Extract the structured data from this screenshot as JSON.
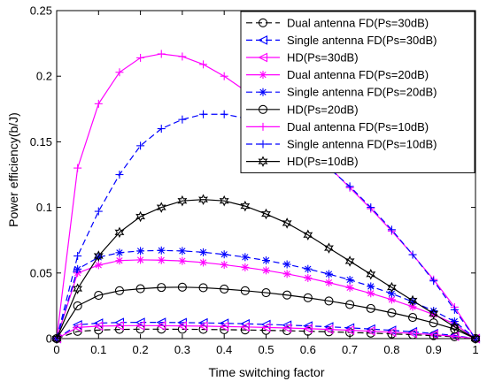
{
  "chart_data": {
    "type": "line",
    "title": "",
    "xlabel": "Time switching factor",
    "ylabel": "Power efficiency(b/J)",
    "xlim": [
      0,
      1
    ],
    "ylim": [
      0,
      0.25
    ],
    "x_ticks": [
      0,
      0.1,
      0.2,
      0.3,
      0.4,
      0.5,
      0.6,
      0.7,
      0.8,
      0.9,
      1
    ],
    "x_tick_labels": [
      "0",
      "0.1",
      "0.2",
      "0.3",
      "0.4",
      "0.5",
      "0.6",
      "0.7",
      "0.8",
      "0.9",
      "1"
    ],
    "y_ticks": [
      0,
      0.05,
      0.1,
      0.15,
      0.2,
      0.25
    ],
    "y_tick_labels": [
      "0",
      "0.05",
      "0.1",
      "0.15",
      "0.2",
      "0.25"
    ],
    "grid": false,
    "legend_position": "top-right",
    "x": [
      0,
      0.05,
      0.1,
      0.15,
      0.2,
      0.25,
      0.3,
      0.35,
      0.4,
      0.45,
      0.5,
      0.55,
      0.6,
      0.65,
      0.7,
      0.75,
      0.8,
      0.85,
      0.9,
      0.95,
      1
    ],
    "series": [
      {
        "name": "Dual antenna FD(Ps=30dB)",
        "color": "#000000",
        "dash": "dashed",
        "marker": "circle",
        "values": [
          0,
          0.0055,
          0.0065,
          0.007,
          0.0072,
          0.0072,
          0.0071,
          0.007,
          0.0068,
          0.0066,
          0.0063,
          0.006,
          0.0056,
          0.0052,
          0.0047,
          0.0042,
          0.0036,
          0.003,
          0.0022,
          0.0014,
          0
        ]
      },
      {
        "name": "Single antenna FD(Ps=30dB)",
        "color": "#0000ff",
        "dash": "dashed",
        "marker": "triangle-left",
        "values": [
          0,
          0.0105,
          0.0118,
          0.0123,
          0.0124,
          0.0124,
          0.0122,
          0.012,
          0.0117,
          0.0113,
          0.0108,
          0.0103,
          0.0097,
          0.009,
          0.0082,
          0.0073,
          0.0063,
          0.0052,
          0.0039,
          0.0024,
          0
        ]
      },
      {
        "name": "HD(Ps=30dB)",
        "color": "#ff00ff",
        "dash": "solid",
        "marker": "triangle-left",
        "values": [
          0,
          0.0085,
          0.0095,
          0.0098,
          0.0099,
          0.0098,
          0.0097,
          0.0095,
          0.0092,
          0.0089,
          0.0085,
          0.0081,
          0.0076,
          0.007,
          0.0064,
          0.0057,
          0.0049,
          0.004,
          0.003,
          0.0018,
          0
        ]
      },
      {
        "name": "Dual antenna FD(Ps=20dB)",
        "color": "#ff00ff",
        "dash": "solid",
        "marker": "asterisk",
        "values": [
          0,
          0.05,
          0.056,
          0.0595,
          0.06,
          0.0598,
          0.0592,
          0.058,
          0.0563,
          0.0543,
          0.052,
          0.0493,
          0.0462,
          0.0427,
          0.0388,
          0.0345,
          0.0297,
          0.0243,
          0.0183,
          0.0112,
          0
        ]
      },
      {
        "name": "Single antenna FD(Ps=20dB)",
        "color": "#0000ff",
        "dash": "dashed",
        "marker": "asterisk",
        "values": [
          0,
          0.053,
          0.062,
          0.0655,
          0.0668,
          0.0672,
          0.0668,
          0.0658,
          0.0642,
          0.0621,
          0.0596,
          0.0566,
          0.0531,
          0.0492,
          0.0448,
          0.0398,
          0.0343,
          0.0281,
          0.0212,
          0.0131,
          0
        ]
      },
      {
        "name": "HD(Ps=20dB)",
        "color": "#000000",
        "dash": "solid",
        "marker": "circle",
        "values": [
          0,
          0.025,
          0.033,
          0.0365,
          0.038,
          0.039,
          0.0392,
          0.0388,
          0.0378,
          0.0365,
          0.035,
          0.0332,
          0.0311,
          0.0287,
          0.026,
          0.023,
          0.0197,
          0.0161,
          0.012,
          0.0073,
          0
        ]
      },
      {
        "name": "Dual antenna FD(Ps=10dB)",
        "color": "#ff00ff",
        "dash": "solid",
        "marker": "plus",
        "values": [
          0,
          0.13,
          0.179,
          0.203,
          0.214,
          0.217,
          0.215,
          0.209,
          0.2,
          0.189,
          0.176,
          0.162,
          0.147,
          0.131,
          0.115,
          0.099,
          0.082,
          0.064,
          0.045,
          0.024,
          0
        ]
      },
      {
        "name": "Single antenna FD(Ps=10dB)",
        "color": "#0000ff",
        "dash": "dashed",
        "marker": "plus",
        "values": [
          0,
          0.063,
          0.097,
          0.125,
          0.147,
          0.16,
          0.167,
          0.171,
          0.171,
          0.168,
          0.162,
          0.154,
          0.143,
          0.13,
          0.116,
          0.1,
          0.083,
          0.064,
          0.044,
          0.022,
          0
        ]
      },
      {
        "name": "HD(Ps=10dB)",
        "color": "#000000",
        "dash": "solid",
        "marker": "hexagram",
        "values": [
          0,
          0.038,
          0.063,
          0.081,
          0.093,
          0.1,
          0.105,
          0.106,
          0.105,
          0.101,
          0.095,
          0.088,
          0.079,
          0.069,
          0.059,
          0.049,
          0.039,
          0.029,
          0.019,
          0.009,
          0
        ]
      }
    ]
  }
}
